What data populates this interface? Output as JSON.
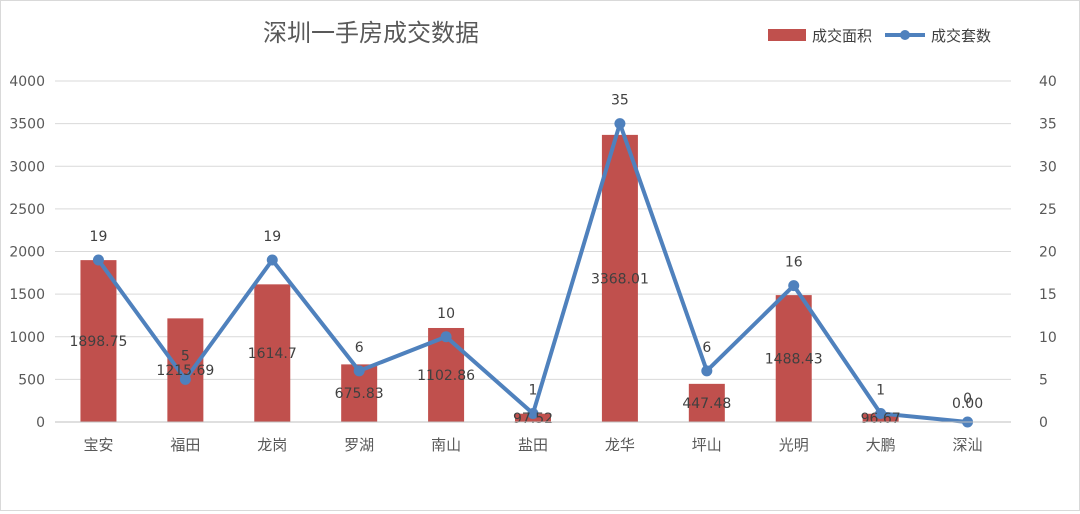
{
  "chart_data": {
    "type": "bar",
    "title": "深圳一手房成交数据",
    "categories": [
      "宝安",
      "福田",
      "龙岗",
      "罗湖",
      "南山",
      "盐田",
      "龙华",
      "坪山",
      "光明",
      "大鹏",
      "深汕"
    ],
    "series": [
      {
        "name": "成交面积",
        "type": "bar",
        "axis": "left",
        "color": "#c0504d",
        "values": [
          1898.75,
          1215.69,
          1614.7,
          675.83,
          1102.86,
          97.52,
          3368.01,
          447.48,
          1488.43,
          96.67,
          0
        ],
        "labels": [
          "1898.75",
          "1215.69",
          "1614.7",
          "675.83",
          "1102.86",
          "97.52",
          "3368.01",
          "447.48",
          "1488.43",
          "96.67",
          "0.00"
        ]
      },
      {
        "name": "成交套数",
        "type": "line",
        "axis": "right",
        "color": "#4f81bd",
        "values": [
          19,
          5,
          19,
          6,
          10,
          1,
          35,
          6,
          16,
          1,
          0
        ],
        "labels": [
          "19",
          "5",
          "19",
          "6",
          "10",
          "1",
          "35",
          "6",
          "16",
          "1",
          "0"
        ]
      }
    ],
    "y_left": {
      "min": 0,
      "max": 4000,
      "ticks": [
        "0",
        "500",
        "1000",
        "1500",
        "2000",
        "2500",
        "3000",
        "3500",
        "4000"
      ]
    },
    "y_right": {
      "min": 0,
      "max": 40,
      "ticks": [
        "0",
        "5",
        "10",
        "15",
        "20",
        "25",
        "30",
        "35",
        "40"
      ]
    },
    "grid": true,
    "legend": "top-right"
  }
}
